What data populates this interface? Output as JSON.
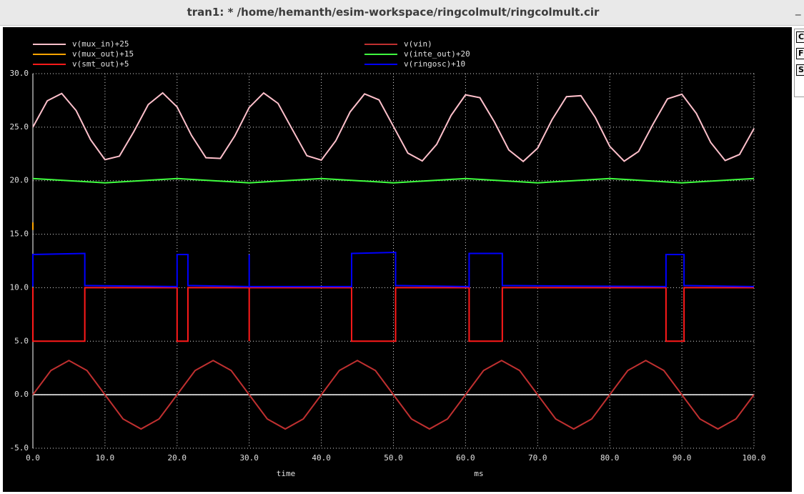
{
  "window": {
    "title": "tran1: * /home/hemanth/esim-workspace/ringcolmult/ringcolmult.cir",
    "minimize": "_"
  },
  "panel_buttons": [
    "C",
    "F",
    "S"
  ],
  "chart_data": {
    "type": "line",
    "xlabel": "time",
    "xunit": "ms",
    "xlim": [
      0,
      100
    ],
    "ylim": [
      -5,
      30
    ],
    "xticks": [
      {
        "value": 0,
        "label": "0.0"
      },
      {
        "value": 10,
        "label": "10.0"
      },
      {
        "value": 20,
        "label": "20.0"
      },
      {
        "value": 30,
        "label": "30.0"
      },
      {
        "value": 40,
        "label": "40.0"
      },
      {
        "value": 50,
        "label": "50.0"
      },
      {
        "value": 60,
        "label": "60.0"
      },
      {
        "value": 70,
        "label": "70.0"
      },
      {
        "value": 80,
        "label": "80.0"
      },
      {
        "value": 90,
        "label": "90.0"
      },
      {
        "value": 100,
        "label": "100.0"
      }
    ],
    "yticks": [
      {
        "value": -5,
        "label": "-5.0"
      },
      {
        "value": 0,
        "label": "0.0"
      },
      {
        "value": 5,
        "label": "5.0"
      },
      {
        "value": 10,
        "label": "10.0"
      },
      {
        "value": 15,
        "label": "15.0"
      },
      {
        "value": 20,
        "label": "20.0"
      },
      {
        "value": 25,
        "label": "25.0"
      },
      {
        "value": 30,
        "label": "30.0"
      }
    ],
    "grid": true,
    "legend": "top",
    "series": [
      {
        "name": "v(mux_in)+25",
        "color": "#ffc0cb",
        "x": [
          0,
          2,
          4,
          6,
          8,
          10,
          12,
          14,
          16,
          18,
          20,
          22,
          24,
          26,
          28,
          30,
          32,
          34,
          36,
          38,
          40,
          42,
          44,
          46,
          48,
          50,
          52,
          54,
          56,
          58,
          60,
          62,
          64,
          66,
          68,
          70,
          72,
          74,
          76,
          78,
          80,
          82,
          84,
          86,
          88,
          90,
          92,
          94,
          96,
          98,
          100
        ],
        "values": [
          25,
          27.46,
          28.15,
          26.55,
          23.83,
          21.96,
          22.29,
          24.58,
          27.11,
          28.2,
          26.89,
          24.23,
          22.14,
          22.08,
          24.18,
          26.84,
          28.19,
          27.22,
          24.76,
          22.33,
          21.92,
          23.72,
          26.43,
          28.11,
          27.55,
          25.07,
          22.58,
          21.84,
          23.39,
          26.1,
          28.02,
          27.75,
          25.49,
          22.87,
          21.8,
          23.04,
          25.7,
          27.85,
          27.94,
          25.9,
          23.21,
          21.82,
          22.73,
          25.28,
          27.64,
          28.08,
          26.29,
          23.57,
          21.88,
          22.45,
          24.87
        ]
      },
      {
        "name": "v(vin)",
        "color": "#c03030",
        "x": [
          0,
          2.5,
          5,
          7.5,
          10,
          12.5,
          15,
          17.5,
          20,
          22.5,
          25,
          27.5,
          30,
          32.5,
          35,
          37.5,
          40,
          42.5,
          45,
          47.5,
          50,
          52.5,
          55,
          57.5,
          60,
          62.5,
          65,
          67.5,
          70,
          72.5,
          75,
          77.5,
          80,
          82.5,
          85,
          87.5,
          90,
          92.5,
          95,
          97.5,
          100
        ],
        "values": [
          0,
          2.26,
          3.2,
          2.26,
          0,
          -2.26,
          -3.2,
          -2.26,
          0,
          2.26,
          3.2,
          2.26,
          0,
          -2.26,
          -3.2,
          -2.26,
          0,
          2.26,
          3.2,
          2.26,
          0,
          -2.26,
          -3.2,
          -2.26,
          0,
          2.26,
          3.2,
          2.26,
          0,
          -2.26,
          -3.2,
          -2.26,
          0,
          2.26,
          3.2,
          2.26,
          0,
          -2.26,
          -3.2,
          -2.26,
          0
        ]
      },
      {
        "name": "v(mux_out)+15",
        "color": "#ffa500",
        "x": [
          0,
          0
        ],
        "values": [
          15.4,
          16.1
        ]
      },
      {
        "name": "v(inte_out)+20",
        "color": "#40ff40",
        "x": [
          0,
          5,
          10,
          15,
          20,
          25,
          30,
          35,
          40,
          45,
          50,
          55,
          60,
          65,
          70,
          75,
          80,
          85,
          90,
          95,
          100
        ],
        "values": [
          20.2,
          20,
          19.8,
          20,
          20.2,
          20,
          19.8,
          20,
          20.2,
          20,
          19.8,
          20,
          20.2,
          20,
          19.8,
          20,
          20.2,
          20,
          19.8,
          20,
          20.2
        ]
      },
      {
        "name": "v(smt_out)+5",
        "color": "#ff1a1a",
        "x": [
          0,
          0,
          7.2,
          7.2,
          20,
          20,
          21.5,
          21.5,
          30,
          30,
          30,
          44.2,
          44.2,
          50.3,
          50.3,
          60.5,
          60.5,
          65.1,
          65.1,
          87.8,
          87.8,
          90.3,
          90.3,
          100
        ],
        "values": [
          10,
          5,
          5,
          10,
          10,
          5,
          5,
          10,
          10,
          5,
          10,
          10,
          5,
          5,
          10,
          10,
          5,
          5,
          10,
          10,
          5,
          5,
          10,
          10
        ]
      },
      {
        "name": "v(ringosc)+10",
        "color": "#0000ff",
        "x": [
          0,
          0,
          7.2,
          7.2,
          20,
          20,
          21.5,
          21.5,
          30,
          30,
          30,
          44.2,
          44.2,
          50.3,
          50.3,
          60.5,
          60.5,
          65.1,
          65.1,
          87.8,
          87.8,
          90.3,
          90.3,
          100
        ],
        "values": [
          10.1,
          13.1,
          13.2,
          10.2,
          10.1,
          13.1,
          13.1,
          10.2,
          10.1,
          13.1,
          10.1,
          10.1,
          13.2,
          13.3,
          10.2,
          10.1,
          13.2,
          13.2,
          10.2,
          10.1,
          13.1,
          13.1,
          10.2,
          10.1
        ]
      }
    ]
  }
}
